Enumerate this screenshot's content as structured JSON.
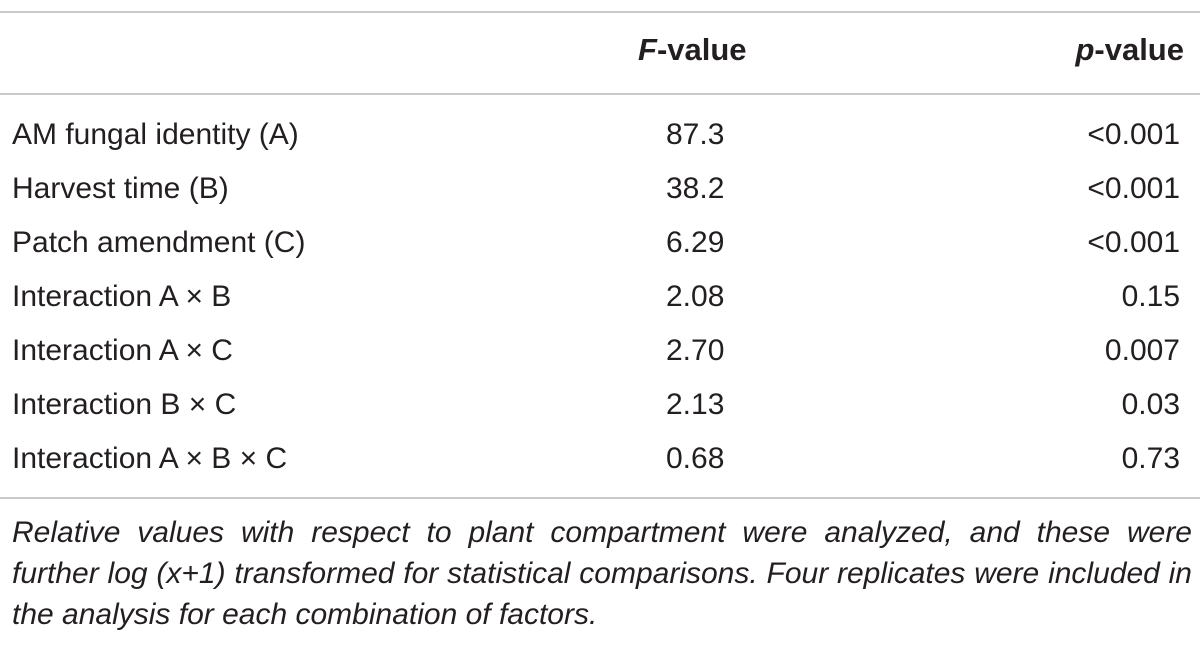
{
  "table": {
    "header": {
      "f_value": {
        "italic": "F",
        "rest": "-value"
      },
      "p_value": {
        "italic": "p",
        "rest": "-value"
      }
    },
    "rows": [
      {
        "factor": "AM fungal identity (A)",
        "f": "87.3",
        "p": "<0.001"
      },
      {
        "factor": "Harvest time (B)",
        "f": "38.2",
        "p": "<0.001"
      },
      {
        "factor": "Patch amendment (C)",
        "f": "6.29",
        "p": "<0.001"
      },
      {
        "factor": "Interaction A × B",
        "f": "2.08",
        "p": "0.15"
      },
      {
        "factor": "Interaction A × C",
        "f": "2.70",
        "p": "0.007"
      },
      {
        "factor": "Interaction B × C",
        "f": "2.13",
        "p": "0.03"
      },
      {
        "factor": "Interaction A × B × C",
        "f": "0.68",
        "p": "0.73"
      }
    ],
    "footnote": "Relative values with respect to plant compartment were analyzed, and these were further log (x+1) transformed for statistical comparisons. Four replicates were included in the analysis for each combination of factors."
  }
}
